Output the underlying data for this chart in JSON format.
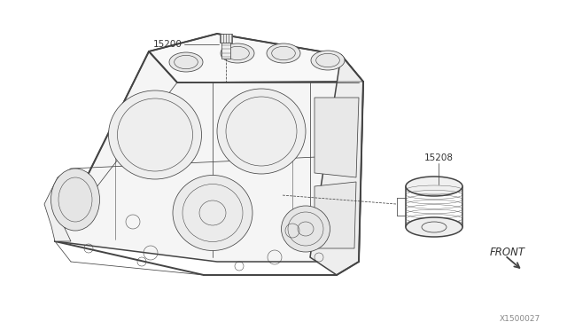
{
  "bg_color": "#ffffff",
  "line_color": "#444444",
  "label_color": "#333333",
  "figsize": [
    6.4,
    3.72
  ],
  "dpi": 100,
  "part_label_15200": "15200",
  "part_label_15208": "15208",
  "front_label": "FRONT",
  "diagram_id": "X1500027",
  "lw_main": 1.1,
  "lw_thin": 0.55,
  "lw_thick": 1.4
}
